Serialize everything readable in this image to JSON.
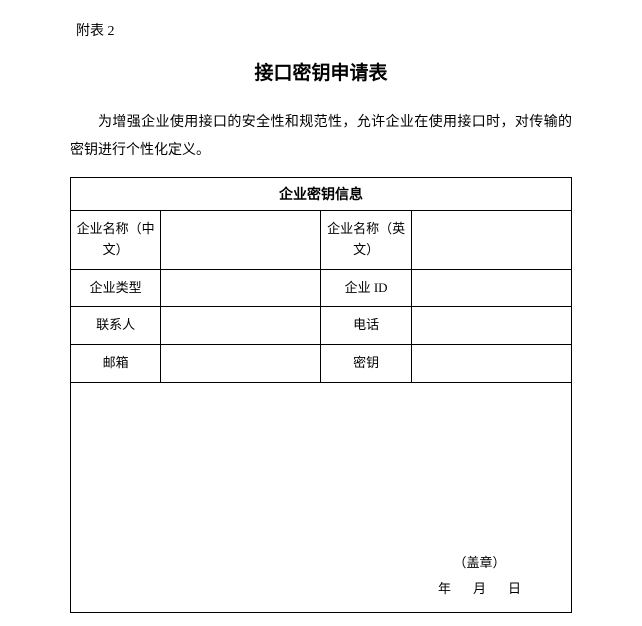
{
  "appendix_label": "附表 2",
  "title": "接口密钥申请表",
  "description": "为增强企业使用接口的安全性和规范性，允许企业在使用接口时，对传输的密钥进行个性化定义。",
  "table": {
    "header": "企业密钥信息",
    "rows": [
      {
        "label_left": "企业名称（中文）",
        "value_left": "",
        "label_right": "企业名称（英文）",
        "value_right": ""
      },
      {
        "label_left": "企业类型",
        "value_left": "",
        "label_right": "企业 ID",
        "value_right": ""
      },
      {
        "label_left": "联系人",
        "value_left": "",
        "label_right": "电话",
        "value_right": ""
      },
      {
        "label_left": "邮箱",
        "value_left": "",
        "label_right": "密钥",
        "value_right": ""
      }
    ],
    "footer": {
      "seal": "（盖章）",
      "year": "年",
      "month": "月",
      "day": "日"
    }
  },
  "colors": {
    "text": "#000000",
    "background": "#ffffff",
    "border": "#000000"
  },
  "typography": {
    "title_fontsize": 19,
    "body_fontsize": 14,
    "table_fontsize": 13
  }
}
